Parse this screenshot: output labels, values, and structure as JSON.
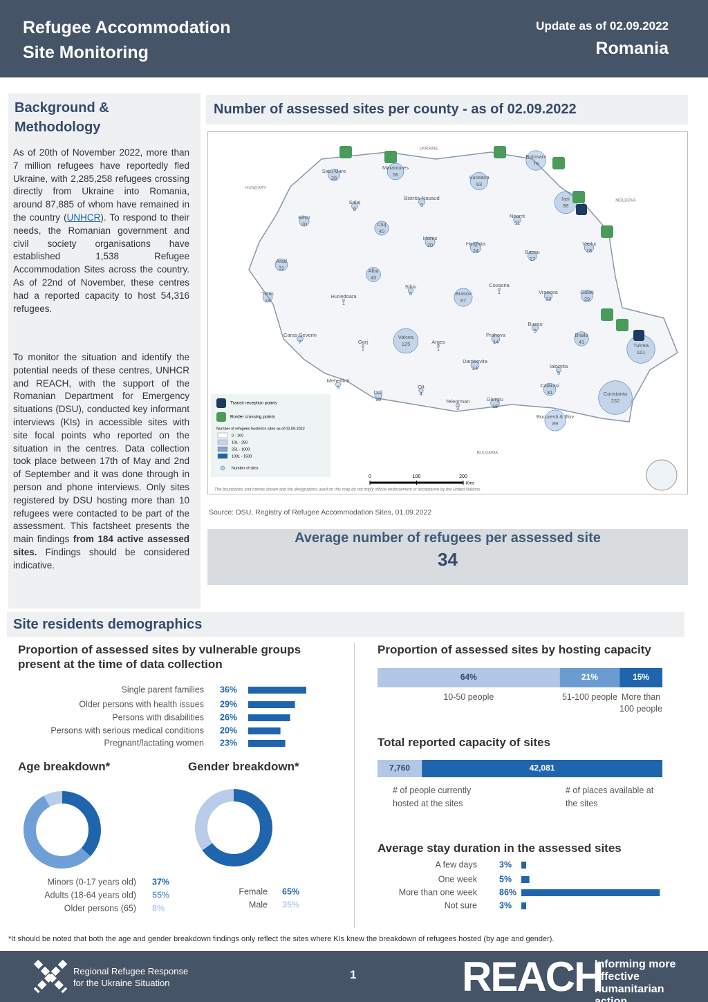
{
  "header": {
    "title_line1": "Refugee Accommodation",
    "title_line2": "Site Monitoring",
    "update": "Update as of 02.09.2022",
    "country": "Romania"
  },
  "background": {
    "title": "Background & Methodology",
    "paragraph1": [
      "As of 20th of November 2022, more than 7 million refugees have reportedly fled Ukraine, with 2,285,258 refugees crossing directly from Ukraine into Romania, around 87,885 of whom have remained in the country (",
      "UNHCR",
      "). To respond to their needs, the Romanian government and civil society organisations have established 1,538 Refugee Accommodation Sites across the country. As of 22nd of November, these centres had a reported capacity to host 54,316 refugees."
    ],
    "paragraph2": [
      "To monitor the situation and identify the potential needs of these centres, UNHCR and REACH, with the support of the Romanian Department for Emergency situations (DSU), conducted key informant interviews (KIs) in accessible sites with site focal points who reported on the situation in the centres. Data collection took place between 17th of May and 2nd of September and it was done through in person and phone interviews. Only sites registered by DSU hosting more than 10 refugees were contacted to be part of the assessment. This factsheet presents the main findings ",
      "from 184 active assessed sites.",
      " Findings should be considered indicative."
    ]
  },
  "map": {
    "title": "Number of assessed sites per county - as of 02.09.2022",
    "countries": [
      "UKRAINE",
      "HUNGARY",
      "MOLDOVA",
      "BULGARIA"
    ],
    "counties": [
      {
        "name": "Satu Mare",
        "sites": 28
      },
      {
        "name": "Maramures",
        "sites": 56
      },
      {
        "name": "Botosani",
        "sites": 79
      },
      {
        "name": "Suceava",
        "sites": 63
      },
      {
        "name": "Iasi",
        "sites": 98
      },
      {
        "name": "Salaj",
        "sites": 8
      },
      {
        "name": "Bistrita-Nasaud",
        "sites": 9
      },
      {
        "name": "Bihor",
        "sites": 20
      },
      {
        "name": "Cluj",
        "sites": 40
      },
      {
        "name": "Neamt",
        "sites": 11
      },
      {
        "name": "Mures",
        "sites": 20
      },
      {
        "name": "Harghita",
        "sites": 24
      },
      {
        "name": "Bacau",
        "sites": 17
      },
      {
        "name": "Vaslui",
        "sites": 18
      },
      {
        "name": "Arad",
        "sites": 31
      },
      {
        "name": "Alba",
        "sites": 43
      },
      {
        "name": "Sibiu",
        "sites": 6
      },
      {
        "name": "Covasna",
        "sites": 1
      },
      {
        "name": "Brasov",
        "sites": 67
      },
      {
        "name": "Timis",
        "sites": 19
      },
      {
        "name": "Hunedoara",
        "sites": 1
      },
      {
        "name": "Vrancea",
        "sites": 13
      },
      {
        "name": "Galati",
        "sites": 29
      },
      {
        "name": "Caras-Severin",
        "sites": 7
      },
      {
        "name": "Gorj",
        "sites": 1
      },
      {
        "name": "Valcea",
        "sites": 125
      },
      {
        "name": "Arges",
        "sites": 1
      },
      {
        "name": "Prahova",
        "sites": 14
      },
      {
        "name": "Buzau",
        "sites": 9
      },
      {
        "name": "Braila",
        "sites": 41
      },
      {
        "name": "Tulcea",
        "sites": 161
      },
      {
        "name": "Dambovita",
        "sites": 14
      },
      {
        "name": "Ialomita",
        "sites": 5
      },
      {
        "name": "Mehedinti",
        "sites": 5
      },
      {
        "name": "Dolj",
        "sites": 10
      },
      {
        "name": "Olt",
        "sites": 4
      },
      {
        "name": "Teleorman",
        "sites": 3
      },
      {
        "name": "Giurgiu",
        "sites": 16
      },
      {
        "name": "Calarasi",
        "sites": 31
      },
      {
        "name": "Constanta",
        "sites": 232
      },
      {
        "name": "Bucuresti & Ilfov",
        "sites": 89
      }
    ],
    "legend": {
      "transit": "Transit reception points",
      "border": "Border crossing points",
      "classes_title": "Number of refugees hosted in sites as of 02.09.2022",
      "classes": [
        "0 - 100",
        "101 - 250",
        "251 - 1000",
        "1001 - 1500"
      ],
      "class_colors": [
        "#ffffff",
        "#c6d3ea",
        "#7fa6d6",
        "#1f63a8"
      ],
      "sites": "Number of sites"
    },
    "scale": [
      0,
      100,
      200
    ],
    "scale_unit": "Kms",
    "disclaimer": "The boundaries and names shown and the designations used on this map do not imply official endorsement or acceptance by the United Nations.",
    "source": "Source: DSU, Registry of Refugee Accommodation Sites, 01.09.2022"
  },
  "highlight": {
    "label": "Average number of refugees per assessed site",
    "value": 34
  },
  "demographics": {
    "title": "Site residents demographics",
    "vulnerable": {
      "type": "bar",
      "title": "Proportion of assessed sites by vulnerable groups present at the time of data collection",
      "color": "#1f65ad",
      "categories": [
        "Single parent families",
        "Older persons with health issues",
        "Persons with disabilities",
        "Persons with serious medical conditions",
        "Pregnant/lactating women"
      ],
      "values": [
        36,
        29,
        26,
        20,
        23
      ],
      "value_labels": [
        "36%",
        "29%",
        "26%",
        "20%",
        "23%"
      ]
    },
    "age": {
      "type": "pie",
      "title": "Age breakdown*",
      "categories": [
        "Minors (0-17 years old)",
        "Adults (18-64 years old)",
        "Older persons (65)"
      ],
      "values": [
        37,
        55,
        8
      ],
      "value_labels": [
        "37%",
        "55%",
        "8%"
      ],
      "colors": [
        "#1f65ad",
        "#6f9fd7",
        "#b9cce9"
      ]
    },
    "gender": {
      "type": "pie",
      "title": "Gender breakdown*",
      "categories": [
        "Female",
        "Male"
      ],
      "values": [
        65,
        35
      ],
      "value_labels": [
        "65%",
        "35%"
      ],
      "colors": [
        "#1f65ad",
        "#b9cce9"
      ]
    },
    "hosting": {
      "type": "stacked-bar",
      "title": "Proportion of assessed sites by hosting capacity",
      "categories": [
        "10-50 people",
        "51-100 people",
        "More than 100 people"
      ],
      "values": [
        64,
        21,
        15
      ],
      "value_labels": [
        "64%",
        "21%",
        "15%"
      ],
      "colors": [
        "#b2c6e6",
        "#6c9bd2",
        "#1f65ad"
      ]
    },
    "capacity": {
      "type": "stacked-bar",
      "title": "Total reported capacity of sites",
      "categories": [
        "# of people currently hosted at the sites",
        "# of places available at the sites"
      ],
      "values": [
        7760,
        42081
      ],
      "value_labels": [
        "7,760",
        "42,081"
      ],
      "colors": [
        "#b2c6e6",
        "#1f65ad"
      ]
    },
    "stay": {
      "type": "bar",
      "title": "Average stay duration in the assessed sites",
      "color": "#1f65ad",
      "categories": [
        "A few days",
        "One week",
        "More than one week",
        "Not sure"
      ],
      "values": [
        3,
        5,
        86,
        3
      ],
      "value_labels": [
        "3%",
        "5%",
        "86%",
        "3%"
      ]
    }
  },
  "footnote": "*It should be noted that both the age and gender breakdown findings only reflect the sites where KIs knew the breakdown of refugees hosted (by age and gender).",
  "footer": {
    "partner": "Regional Refugee Response for the Ukraine Situation",
    "page": "1",
    "brand": "REACH",
    "tagline": "Informing more effective humanitarian action"
  }
}
